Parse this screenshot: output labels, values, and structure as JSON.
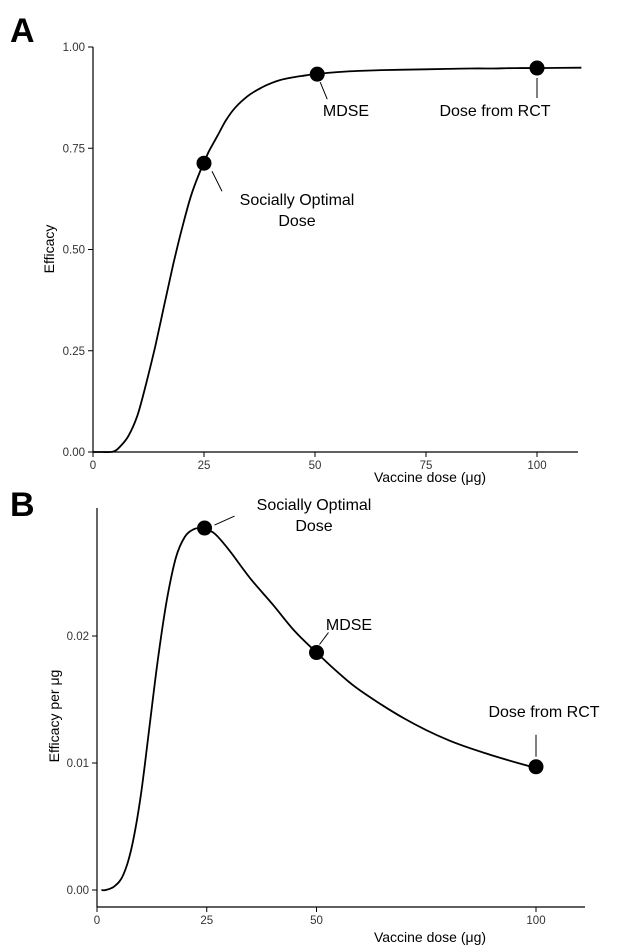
{
  "chart_data": [
    {
      "type": "line",
      "panel_label": "A",
      "xlabel": "Vaccine dose (μg)",
      "ylabel": "Efficacy",
      "xlim": [
        0,
        110
      ],
      "ylim": [
        0,
        1
      ],
      "x_ticks": [
        0,
        25,
        50,
        75,
        100
      ],
      "x_tick_labels": [
        "0",
        "25",
        "50",
        "75",
        "100"
      ],
      "y_ticks": [
        0,
        0.25,
        0.5,
        0.75,
        1.0
      ],
      "y_tick_labels": [
        "0.00",
        "0.25",
        "0.50",
        "0.75",
        "1.00"
      ],
      "grid": false,
      "series": [
        {
          "x": [
            0,
            2,
            4,
            5,
            6,
            8,
            10,
            12,
            14,
            16,
            18,
            20,
            22,
            24,
            25,
            26,
            28,
            30,
            32,
            35,
            38,
            40,
            42,
            45,
            48,
            50,
            55,
            60,
            65,
            70,
            75,
            80,
            85,
            90,
            95,
            100,
            110
          ],
          "y": [
            0.0,
            0.0,
            0.0,
            0.003,
            0.012,
            0.04,
            0.09,
            0.17,
            0.26,
            0.36,
            0.46,
            0.55,
            0.63,
            0.69,
            0.713,
            0.74,
            0.78,
            0.82,
            0.85,
            0.88,
            0.9,
            0.91,
            0.918,
            0.925,
            0.93,
            0.933,
            0.938,
            0.941,
            0.943,
            0.944,
            0.945,
            0.946,
            0.947,
            0.947,
            0.948,
            0.948,
            0.949
          ]
        }
      ],
      "points": [
        {
          "x": 25,
          "y": 0.713,
          "label": "Socially Optimal\nDose"
        },
        {
          "x": 50.5,
          "y": 0.933,
          "label": "MDSE"
        },
        {
          "x": 100,
          "y": 0.948,
          "label": "Dose from RCT"
        }
      ]
    },
    {
      "type": "line",
      "panel_label": "B",
      "xlabel": "Vaccine dose (μg)",
      "ylabel": "Efficacy per μg",
      "xlim": [
        0,
        110
      ],
      "ylim": [
        0,
        0.03
      ],
      "x_ticks": [
        0,
        25,
        50,
        100
      ],
      "x_tick_labels": [
        "0",
        "25",
        "50",
        "100"
      ],
      "y_ticks": [
        0,
        0.01,
        0.02
      ],
      "y_tick_labels": [
        "0.00",
        "0.01",
        "0.02"
      ],
      "grid": false,
      "series": [
        {
          "x": [
            1,
            2,
            4,
            6,
            8,
            10,
            12,
            14,
            16,
            18,
            20,
            22,
            24,
            25,
            27,
            30,
            35,
            40,
            45,
            50,
            55,
            60,
            70,
            80,
            90,
            100
          ],
          "y": [
            0.0,
            0.0,
            0.0003,
            0.0012,
            0.0035,
            0.0075,
            0.013,
            0.0185,
            0.023,
            0.0262,
            0.0278,
            0.0284,
            0.0285,
            0.0284,
            0.028,
            0.0268,
            0.0245,
            0.0225,
            0.0204,
            0.0187,
            0.0171,
            0.0157,
            0.0135,
            0.0118,
            0.0106,
            0.0096
          ]
        }
      ],
      "points": [
        {
          "x": 24.5,
          "y": 0.0285,
          "label": "Socially Optimal\nDose"
        },
        {
          "x": 50,
          "y": 0.0187,
          "label": "MDSE"
        },
        {
          "x": 100,
          "y": 0.0097,
          "label": "Dose from RCT"
        }
      ]
    }
  ]
}
